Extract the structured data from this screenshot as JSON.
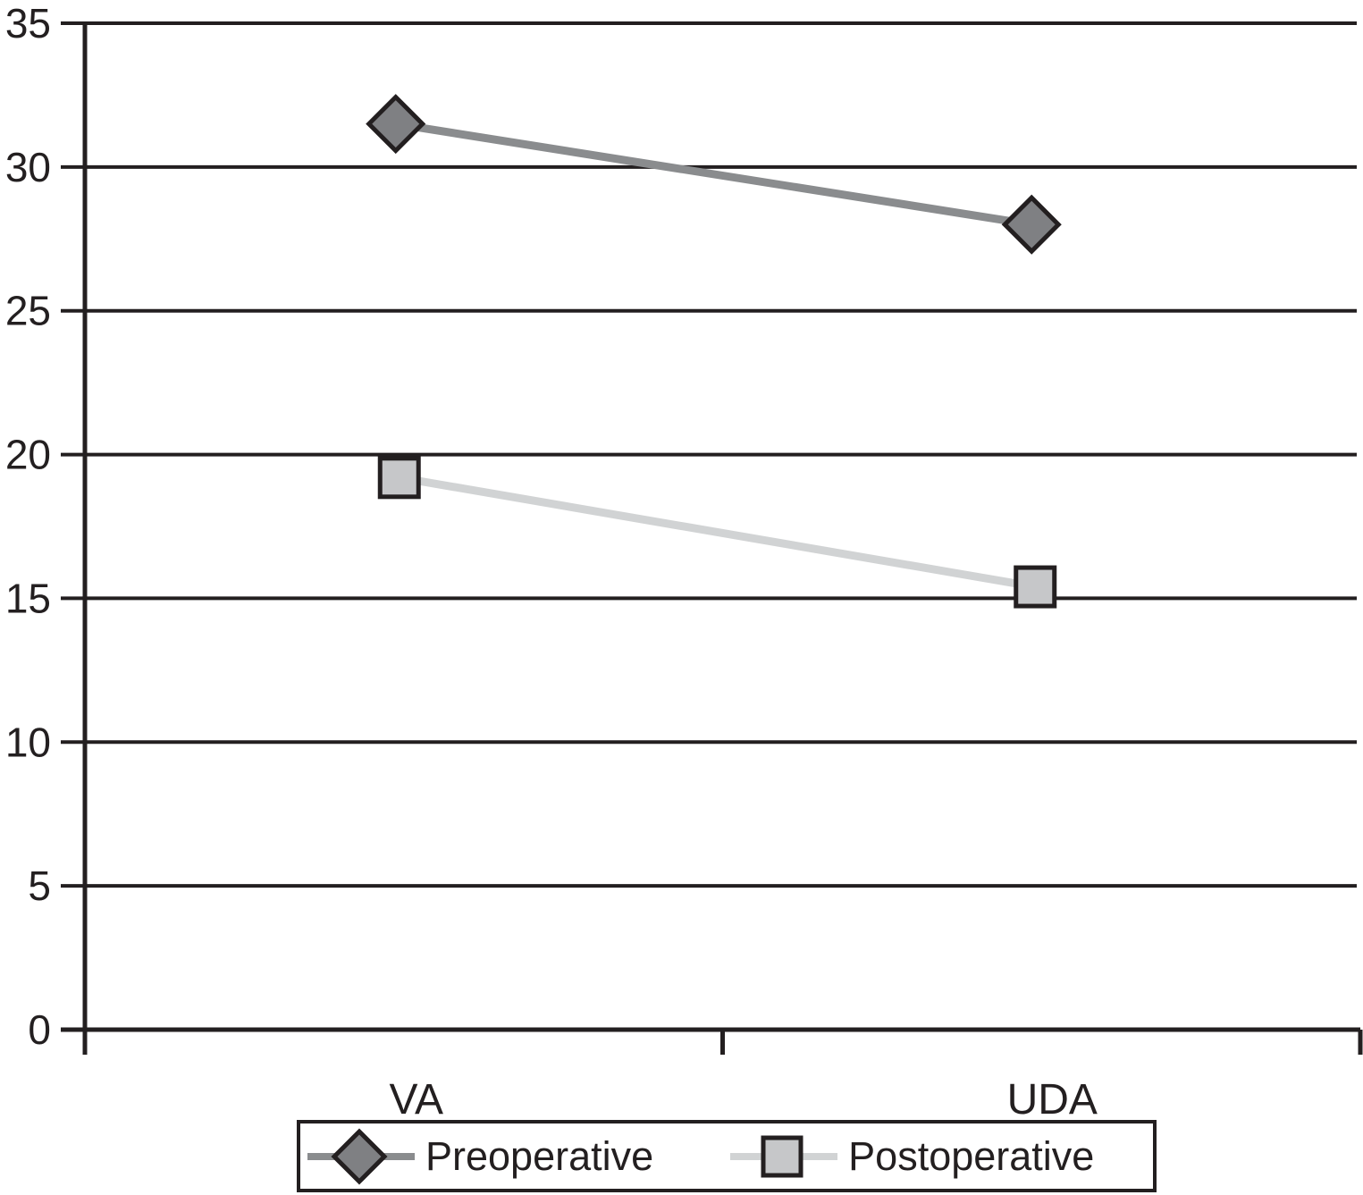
{
  "figure": {
    "background": "#ffffff",
    "ink_color": "#231f20"
  },
  "chart_data": {
    "type": "line",
    "categories": [
      "VA",
      "UDA"
    ],
    "series": [
      {
        "name": "Preoperative",
        "marker": "diamond",
        "values": [
          31.5,
          28.0
        ],
        "line_color": "#8a8c8e",
        "marker_fill": "#7f8083",
        "marker_border": "#231f20"
      },
      {
        "name": "Postoperative",
        "marker": "square",
        "values": [
          19.2,
          15.4
        ],
        "line_color": "#d1d3d4",
        "marker_fill": "#c6c7c9",
        "marker_border": "#231f20"
      }
    ],
    "title": "",
    "xlabel": "",
    "ylabel": "",
    "ylim": [
      0,
      35
    ],
    "yticks": [
      0,
      5,
      10,
      15,
      20,
      25,
      30,
      35
    ],
    "grid": "horizontal",
    "gridline_color": "#231f20",
    "legend_position": "bottom"
  }
}
